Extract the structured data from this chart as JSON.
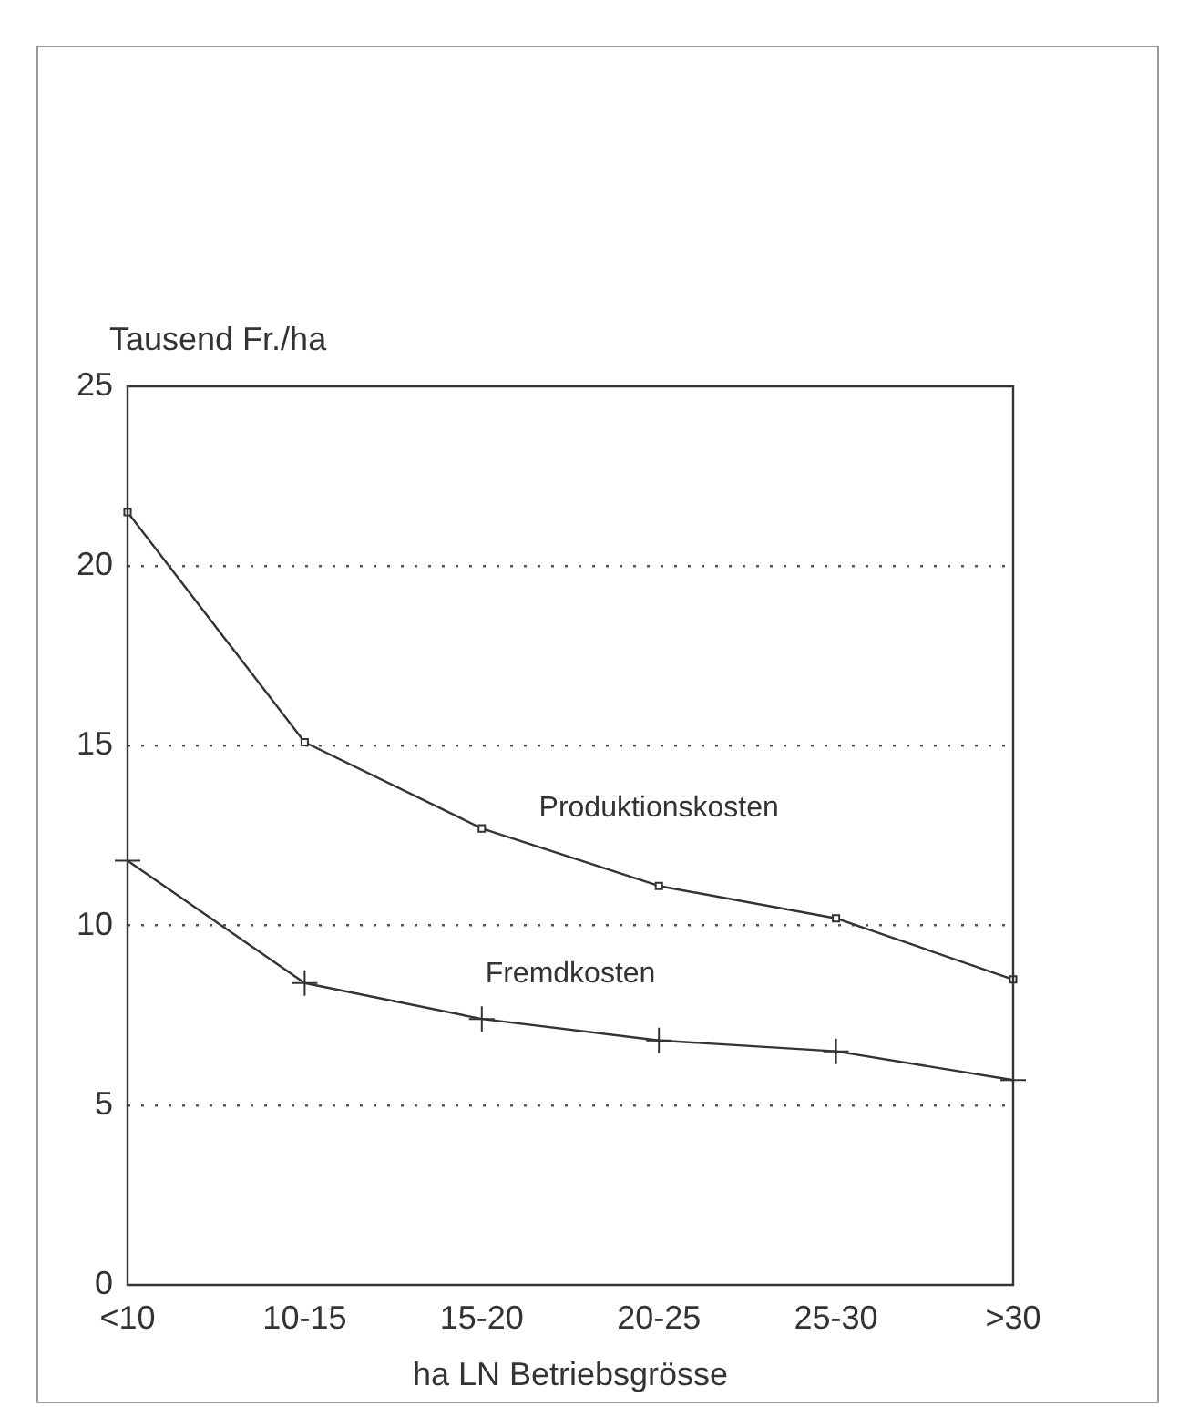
{
  "chart_data": {
    "type": "line",
    "ylabel": "Tausend Fr./ha",
    "xlabel": "ha LN Betriebsgrösse",
    "categories": [
      "<10",
      "10-15",
      "15-20",
      "20-25",
      "25-30",
      ">30"
    ],
    "series": [
      {
        "name": "Produktionskosten",
        "color": "#333333",
        "marker": "square",
        "values": [
          21.5,
          15.1,
          12.7,
          11.1,
          10.2,
          8.5
        ]
      },
      {
        "name": "Fremdkosten",
        "color": "#333333",
        "marker": "cross",
        "values": [
          11.8,
          8.4,
          7.4,
          6.8,
          6.5,
          5.7
        ]
      }
    ],
    "ylim": [
      0,
      25
    ],
    "yticks": [
      0,
      5,
      10,
      15,
      20,
      25
    ],
    "grid": "y",
    "legend": false
  }
}
